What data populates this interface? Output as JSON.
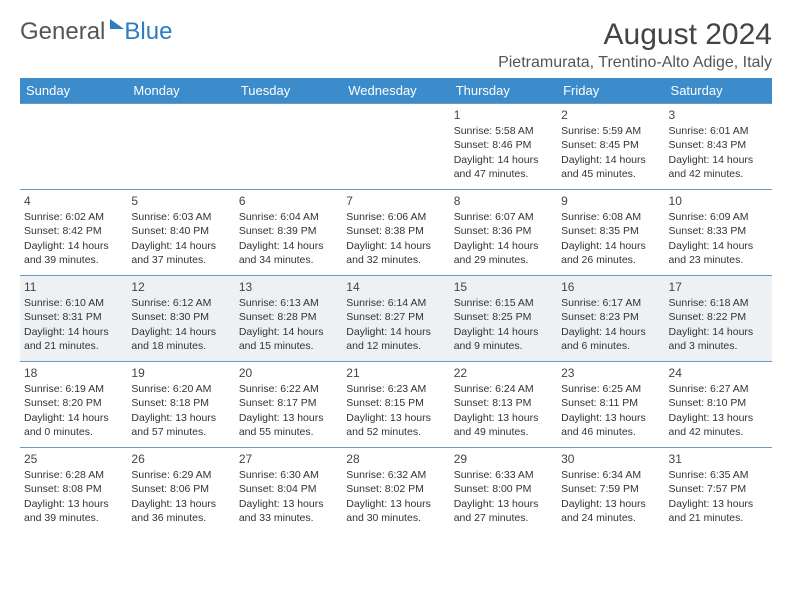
{
  "brand": {
    "part1": "General",
    "part2": "Blue"
  },
  "title": "August 2024",
  "location": "Pietramurata, Trentino-Alto Adige, Italy",
  "colors": {
    "header_bg": "#3c8ccc",
    "row_border": "#6a99c2",
    "shade_bg": "#eef1f3",
    "text": "#333333",
    "brand_blue": "#2b7cc0"
  },
  "weekdays": [
    "Sunday",
    "Monday",
    "Tuesday",
    "Wednesday",
    "Thursday",
    "Friday",
    "Saturday"
  ],
  "weeks": [
    [
      {
        "day": "",
        "sunrise": "",
        "sunset": "",
        "daylight": ""
      },
      {
        "day": "",
        "sunrise": "",
        "sunset": "",
        "daylight": ""
      },
      {
        "day": "",
        "sunrise": "",
        "sunset": "",
        "daylight": ""
      },
      {
        "day": "",
        "sunrise": "",
        "sunset": "",
        "daylight": ""
      },
      {
        "day": "1",
        "sunrise": "Sunrise: 5:58 AM",
        "sunset": "Sunset: 8:46 PM",
        "daylight": "Daylight: 14 hours and 47 minutes."
      },
      {
        "day": "2",
        "sunrise": "Sunrise: 5:59 AM",
        "sunset": "Sunset: 8:45 PM",
        "daylight": "Daylight: 14 hours and 45 minutes."
      },
      {
        "day": "3",
        "sunrise": "Sunrise: 6:01 AM",
        "sunset": "Sunset: 8:43 PM",
        "daylight": "Daylight: 14 hours and 42 minutes."
      }
    ],
    [
      {
        "day": "4",
        "sunrise": "Sunrise: 6:02 AM",
        "sunset": "Sunset: 8:42 PM",
        "daylight": "Daylight: 14 hours and 39 minutes."
      },
      {
        "day": "5",
        "sunrise": "Sunrise: 6:03 AM",
        "sunset": "Sunset: 8:40 PM",
        "daylight": "Daylight: 14 hours and 37 minutes."
      },
      {
        "day": "6",
        "sunrise": "Sunrise: 6:04 AM",
        "sunset": "Sunset: 8:39 PM",
        "daylight": "Daylight: 14 hours and 34 minutes."
      },
      {
        "day": "7",
        "sunrise": "Sunrise: 6:06 AM",
        "sunset": "Sunset: 8:38 PM",
        "daylight": "Daylight: 14 hours and 32 minutes."
      },
      {
        "day": "8",
        "sunrise": "Sunrise: 6:07 AM",
        "sunset": "Sunset: 8:36 PM",
        "daylight": "Daylight: 14 hours and 29 minutes."
      },
      {
        "day": "9",
        "sunrise": "Sunrise: 6:08 AM",
        "sunset": "Sunset: 8:35 PM",
        "daylight": "Daylight: 14 hours and 26 minutes."
      },
      {
        "day": "10",
        "sunrise": "Sunrise: 6:09 AM",
        "sunset": "Sunset: 8:33 PM",
        "daylight": "Daylight: 14 hours and 23 minutes."
      }
    ],
    [
      {
        "day": "11",
        "sunrise": "Sunrise: 6:10 AM",
        "sunset": "Sunset: 8:31 PM",
        "daylight": "Daylight: 14 hours and 21 minutes."
      },
      {
        "day": "12",
        "sunrise": "Sunrise: 6:12 AM",
        "sunset": "Sunset: 8:30 PM",
        "daylight": "Daylight: 14 hours and 18 minutes."
      },
      {
        "day": "13",
        "sunrise": "Sunrise: 6:13 AM",
        "sunset": "Sunset: 8:28 PM",
        "daylight": "Daylight: 14 hours and 15 minutes."
      },
      {
        "day": "14",
        "sunrise": "Sunrise: 6:14 AM",
        "sunset": "Sunset: 8:27 PM",
        "daylight": "Daylight: 14 hours and 12 minutes."
      },
      {
        "day": "15",
        "sunrise": "Sunrise: 6:15 AM",
        "sunset": "Sunset: 8:25 PM",
        "daylight": "Daylight: 14 hours and 9 minutes."
      },
      {
        "day": "16",
        "sunrise": "Sunrise: 6:17 AM",
        "sunset": "Sunset: 8:23 PM",
        "daylight": "Daylight: 14 hours and 6 minutes."
      },
      {
        "day": "17",
        "sunrise": "Sunrise: 6:18 AM",
        "sunset": "Sunset: 8:22 PM",
        "daylight": "Daylight: 14 hours and 3 minutes."
      }
    ],
    [
      {
        "day": "18",
        "sunrise": "Sunrise: 6:19 AM",
        "sunset": "Sunset: 8:20 PM",
        "daylight": "Daylight: 14 hours and 0 minutes."
      },
      {
        "day": "19",
        "sunrise": "Sunrise: 6:20 AM",
        "sunset": "Sunset: 8:18 PM",
        "daylight": "Daylight: 13 hours and 57 minutes."
      },
      {
        "day": "20",
        "sunrise": "Sunrise: 6:22 AM",
        "sunset": "Sunset: 8:17 PM",
        "daylight": "Daylight: 13 hours and 55 minutes."
      },
      {
        "day": "21",
        "sunrise": "Sunrise: 6:23 AM",
        "sunset": "Sunset: 8:15 PM",
        "daylight": "Daylight: 13 hours and 52 minutes."
      },
      {
        "day": "22",
        "sunrise": "Sunrise: 6:24 AM",
        "sunset": "Sunset: 8:13 PM",
        "daylight": "Daylight: 13 hours and 49 minutes."
      },
      {
        "day": "23",
        "sunrise": "Sunrise: 6:25 AM",
        "sunset": "Sunset: 8:11 PM",
        "daylight": "Daylight: 13 hours and 46 minutes."
      },
      {
        "day": "24",
        "sunrise": "Sunrise: 6:27 AM",
        "sunset": "Sunset: 8:10 PM",
        "daylight": "Daylight: 13 hours and 42 minutes."
      }
    ],
    [
      {
        "day": "25",
        "sunrise": "Sunrise: 6:28 AM",
        "sunset": "Sunset: 8:08 PM",
        "daylight": "Daylight: 13 hours and 39 minutes."
      },
      {
        "day": "26",
        "sunrise": "Sunrise: 6:29 AM",
        "sunset": "Sunset: 8:06 PM",
        "daylight": "Daylight: 13 hours and 36 minutes."
      },
      {
        "day": "27",
        "sunrise": "Sunrise: 6:30 AM",
        "sunset": "Sunset: 8:04 PM",
        "daylight": "Daylight: 13 hours and 33 minutes."
      },
      {
        "day": "28",
        "sunrise": "Sunrise: 6:32 AM",
        "sunset": "Sunset: 8:02 PM",
        "daylight": "Daylight: 13 hours and 30 minutes."
      },
      {
        "day": "29",
        "sunrise": "Sunrise: 6:33 AM",
        "sunset": "Sunset: 8:00 PM",
        "daylight": "Daylight: 13 hours and 27 minutes."
      },
      {
        "day": "30",
        "sunrise": "Sunrise: 6:34 AM",
        "sunset": "Sunset: 7:59 PM",
        "daylight": "Daylight: 13 hours and 24 minutes."
      },
      {
        "day": "31",
        "sunrise": "Sunrise: 6:35 AM",
        "sunset": "Sunset: 7:57 PM",
        "daylight": "Daylight: 13 hours and 21 minutes."
      }
    ]
  ],
  "shaded_rows": [
    2
  ]
}
